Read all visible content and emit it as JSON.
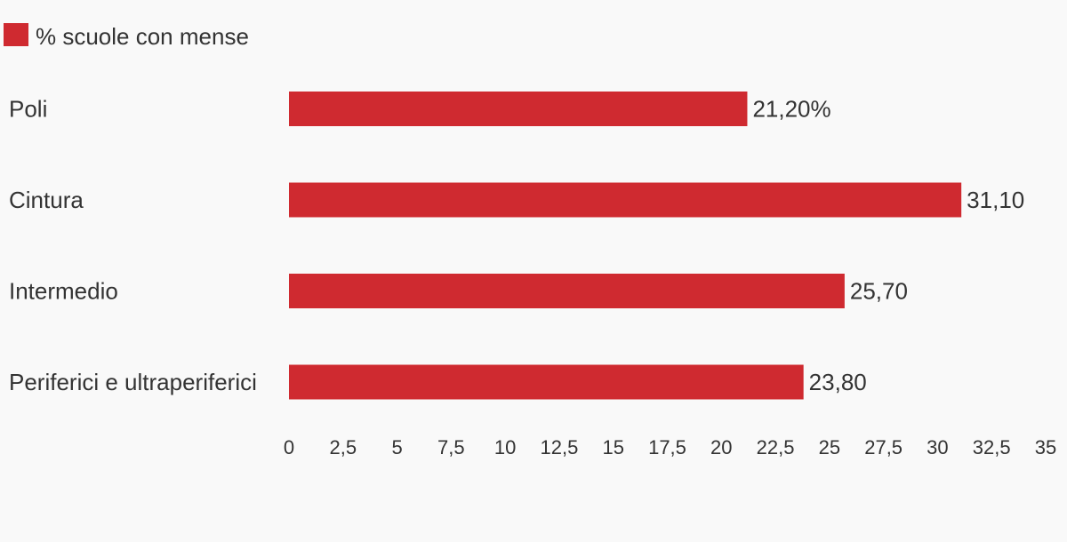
{
  "chart_data": {
    "type": "bar",
    "orientation": "horizontal",
    "categories": [
      "Poli",
      "Cintura",
      "Intermedio",
      "Periferici e ultraperiferici"
    ],
    "series": [
      {
        "name": "% scuole con mense",
        "values": [
          21.2,
          31.1,
          25.7,
          23.8
        ],
        "data_labels": [
          "21,20%",
          "31,10",
          "25,70",
          "23,80"
        ],
        "color": "#cf2a30"
      }
    ],
    "x_ticks": [
      "0",
      "2,5",
      "5",
      "7,5",
      "10",
      "12,5",
      "15",
      "17,5",
      "20",
      "22,5",
      "25",
      "27,5",
      "30",
      "32,5",
      "35"
    ],
    "xlim": [
      0,
      35
    ],
    "grid": false,
    "legend_position": "top-left"
  }
}
